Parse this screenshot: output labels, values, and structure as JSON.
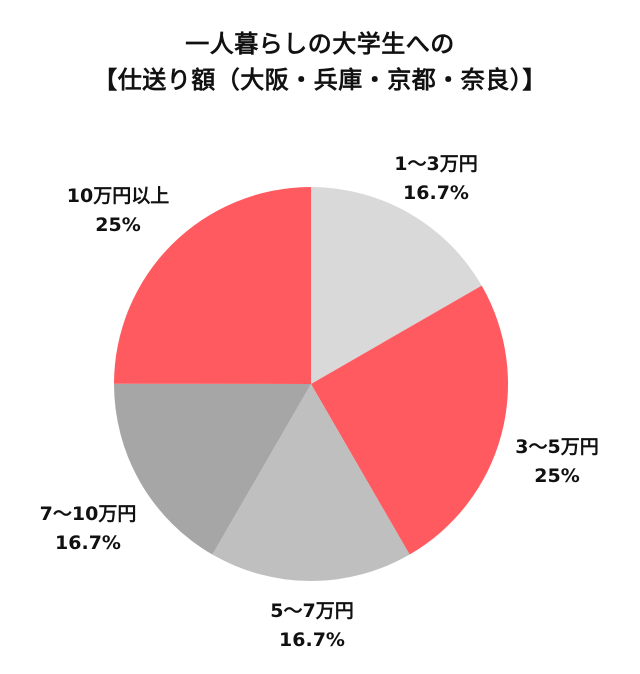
{
  "chart_data": {
    "type": "pie",
    "title": "一人暮らしの大学生への",
    "subtitle": "【仕送り額（大阪・兵庫・京都・奈良）】",
    "categories": [
      "1〜3万円",
      "3〜5万円",
      "5〜7万円",
      "7〜10万円",
      "10万円以上"
    ],
    "values": [
      16.7,
      25,
      16.7,
      16.7,
      25
    ],
    "value_labels": [
      "16.7%",
      "25%",
      "16.7%",
      "16.7%",
      "25%"
    ],
    "colors": [
      "#d9d9d9",
      "#ff5a5f",
      "#bfbfbf",
      "#a6a6a6",
      "#ff5a5f"
    ],
    "start_angle_deg": 0,
    "direction": "clockwise",
    "legend": "none"
  }
}
